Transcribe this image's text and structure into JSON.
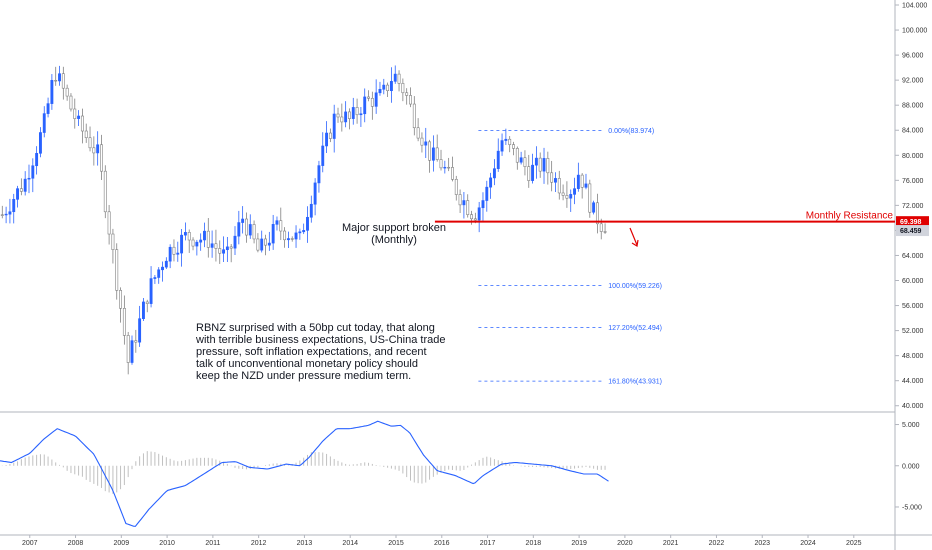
{
  "chart_data": {
    "type": "candlestick",
    "price_axis": {
      "ticks": [
        "104.000",
        "100.000",
        "96.000",
        "92.000",
        "88.000",
        "84.000",
        "80.000",
        "76.000",
        "72.000",
        "68.000",
        "64.000",
        "60.000",
        "56.000",
        "52.000",
        "48.000",
        "44.000",
        "40.000"
      ],
      "range": [
        39.0,
        104.8
      ]
    },
    "time_axis": {
      "labels": [
        "2007",
        "2008",
        "2009",
        "2010",
        "2011",
        "2012",
        "2013",
        "2014",
        "2015",
        "2016",
        "2017",
        "2018",
        "2019",
        "2020",
        "2021",
        "2022",
        "2023",
        "2024",
        "2025"
      ],
      "range": [
        2006.35,
        2025.9
      ]
    },
    "colors": {
      "up": "#2962ff",
      "down": "#808080",
      "resistance": "#e00000",
      "fib": "#2962ff",
      "macd_line": "#2962ff",
      "histogram": "#c0c0c0"
    },
    "anchors": {
      "years": [
        2006.4,
        2006.9,
        2007.3,
        2007.55,
        2008.05,
        2008.5,
        2008.95,
        2009.15,
        2009.6,
        2010.0,
        2010.4,
        2010.9,
        2011.3,
        2011.65,
        2012.0,
        2012.4,
        2012.9,
        2013.3,
        2013.7,
        2014.0,
        2014.3,
        2014.7,
        2014.95,
        2015.2,
        2015.5,
        2015.75,
        2016.0,
        2016.4,
        2016.7,
        2016.95,
        2017.3,
        2017.6,
        2017.9,
        2018.2,
        2018.6,
        2018.85,
        2019.0,
        2019.3,
        2019.6
      ],
      "closes": [
        70.5,
        76.0,
        84.5,
        93.5,
        85.0,
        80.0,
        57.5,
        47.0,
        58.5,
        64.5,
        67.0,
        66.5,
        63.5,
        70.0,
        64.5,
        68.5,
        66.5,
        78.0,
        87.0,
        85.5,
        88.5,
        89.5,
        93.0,
        90.0,
        84.0,
        80.0,
        78.5,
        73.5,
        70.5,
        73.5,
        82.5,
        80.0,
        77.5,
        78.5,
        75.0,
        74.5,
        77.5,
        71.0,
        67.8
      ]
    },
    "resistance": {
      "label": "Monthly Resistance",
      "price": 69.398,
      "tag": "69.398",
      "from": 2015.85
    },
    "last_price": {
      "price": 68.459,
      "tag": "68.459"
    },
    "fib_levels": [
      {
        "label": "0.00%(83.974)",
        "price": 83.974
      },
      {
        "label": "100.00%(59.226)",
        "price": 59.226
      },
      {
        "label": "127.20%(52.494)",
        "price": 52.494
      },
      {
        "label": "161.80%(43.931)",
        "price": 43.931
      }
    ],
    "fib_from": 2016.8,
    "fib_to": 2019.55,
    "annotations": {
      "support_line1": "Major support broken",
      "support_line2": "(Monthly)",
      "commentary": [
        "RBNZ surprised with a 50bp cut today, that along",
        "with terrible business expectations, US-China trade",
        "pressure, soft inflation expectations, and recent",
        "talk of unconventional monetary policy should",
        "keep the NZD under pressure medium term."
      ]
    },
    "oscillator": {
      "ticks": [
        "5.000",
        "0.000",
        "-5.000"
      ],
      "range": [
        -8.4,
        6.4
      ],
      "anchors": [
        [
          2006.35,
          0.6
        ],
        [
          2006.6,
          0.4
        ],
        [
          2007.0,
          1.5
        ],
        [
          2007.3,
          3.2
        ],
        [
          2007.6,
          4.5
        ],
        [
          2008.0,
          3.6
        ],
        [
          2008.4,
          1.4
        ],
        [
          2008.8,
          -2.8
        ],
        [
          2009.1,
          -7.0
        ],
        [
          2009.3,
          -7.4
        ],
        [
          2009.6,
          -5.3
        ],
        [
          2010.0,
          -3.0
        ],
        [
          2010.4,
          -2.4
        ],
        [
          2010.8,
          -1.0
        ],
        [
          2011.2,
          0.4
        ],
        [
          2011.5,
          0.5
        ],
        [
          2011.8,
          -0.2
        ],
        [
          2012.2,
          -0.4
        ],
        [
          2012.6,
          0.2
        ],
        [
          2012.9,
          0.0
        ],
        [
          2013.1,
          1.0
        ],
        [
          2013.4,
          3.0
        ],
        [
          2013.7,
          4.5
        ],
        [
          2014.0,
          4.5
        ],
        [
          2014.4,
          4.9
        ],
        [
          2014.6,
          5.4
        ],
        [
          2014.9,
          4.8
        ],
        [
          2015.1,
          4.9
        ],
        [
          2015.3,
          4.0
        ],
        [
          2015.6,
          1.3
        ],
        [
          2015.9,
          -0.6
        ],
        [
          2016.3,
          -1.2
        ],
        [
          2016.7,
          -2.2
        ],
        [
          2016.9,
          -1.2
        ],
        [
          2017.3,
          0.2
        ],
        [
          2017.6,
          0.4
        ],
        [
          2018.0,
          0.2
        ],
        [
          2018.4,
          0.0
        ],
        [
          2018.8,
          -0.6
        ],
        [
          2019.1,
          -1.0
        ],
        [
          2019.4,
          -1.0
        ],
        [
          2019.65,
          -1.9
        ]
      ]
    }
  }
}
